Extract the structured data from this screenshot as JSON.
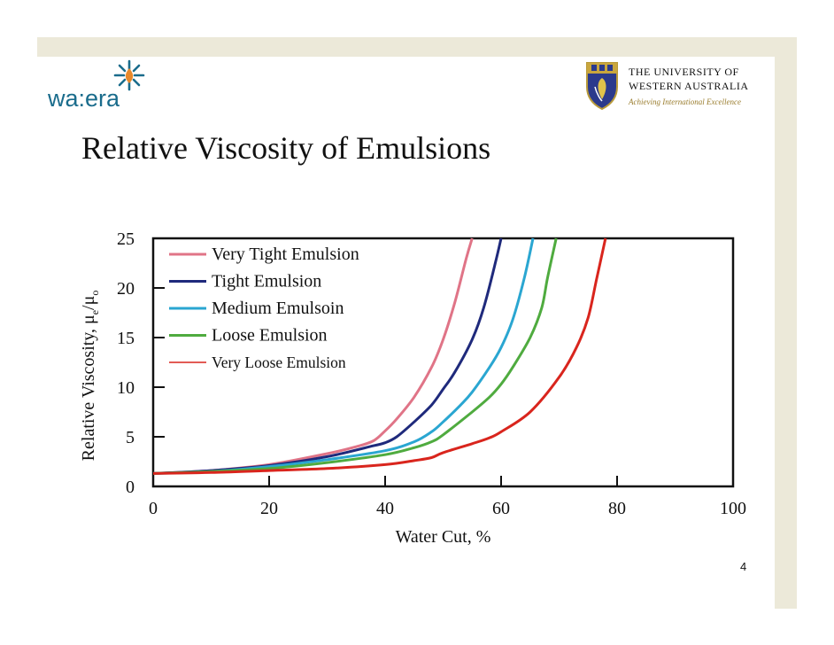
{
  "slide": {
    "title": "Relative Viscosity of Emulsions",
    "page_number": "4"
  },
  "logos": {
    "left_logo_text": "wa:era",
    "university_line1": "THE UNIVERSITY OF",
    "university_line2": "WESTERN AUSTRALIA",
    "university_tagline": "Achieving International Excellence"
  },
  "colors": {
    "band": "#ece9d9",
    "logo_teal": "#1a6c8c",
    "logo_orange": "#e8892b"
  },
  "chart_data": {
    "type": "line",
    "title": "",
    "xlabel": "Water Cut, %",
    "ylabel_main": "Relative Viscosity, μ",
    "ylabel_sub1": "e",
    "ylabel_slash": "/μ",
    "ylabel_sub2": "o",
    "xlim": [
      0,
      100
    ],
    "ylim": [
      0,
      25
    ],
    "x_ticks": [
      0,
      20,
      40,
      60,
      80,
      100
    ],
    "y_ticks": [
      0,
      5,
      10,
      15,
      20,
      25
    ],
    "grid": false,
    "legend_position": "top-left",
    "series": [
      {
        "name": "Very Tight Emulsion",
        "color": "#e07487",
        "x": [
          0,
          10,
          20,
          30,
          35,
          38,
          40,
          42,
          45,
          48,
          50,
          52,
          54,
          55
        ],
        "y": [
          1.3,
          1.6,
          2.2,
          3.3,
          4.0,
          4.6,
          5.6,
          6.8,
          9.0,
          12.0,
          14.8,
          18.5,
          23.0,
          25.0
        ]
      },
      {
        "name": "Tight Emulsion",
        "color": "#1f2a7c",
        "x": [
          0,
          10,
          20,
          30,
          38,
          40,
          42,
          45,
          48,
          50,
          52,
          55,
          57,
          59,
          60
        ],
        "y": [
          1.3,
          1.6,
          2.1,
          3.0,
          4.1,
          4.4,
          5.0,
          6.5,
          8.2,
          9.8,
          11.5,
          14.8,
          18.0,
          22.5,
          25.0
        ]
      },
      {
        "name": "Medium Emulsoin",
        "color": "#2aa6d1",
        "x": [
          0,
          10,
          20,
          30,
          40,
          45,
          48,
          50,
          53,
          55,
          58,
          60,
          62,
          64,
          65.5
        ],
        "y": [
          1.3,
          1.5,
          2.0,
          2.7,
          3.6,
          4.5,
          5.5,
          6.5,
          8.2,
          9.5,
          12.0,
          14.0,
          16.8,
          21.0,
          25.0
        ]
      },
      {
        "name": "Loose Emulsion",
        "color": "#4fab3f",
        "x": [
          0,
          10,
          20,
          30,
          40,
          45,
          48,
          50,
          55,
          58,
          60,
          62,
          65,
          67,
          68,
          69.5
        ],
        "y": [
          1.3,
          1.5,
          1.8,
          2.4,
          3.2,
          3.9,
          4.5,
          5.2,
          7.5,
          9.0,
          10.3,
          12.0,
          15.0,
          18.0,
          21.0,
          25.0
        ]
      },
      {
        "name": "Very Loose Emulsion",
        "color": "#d9251d",
        "x": [
          0,
          10,
          20,
          30,
          40,
          45,
          48,
          50,
          55,
          58,
          60,
          65,
          70,
          73,
          75,
          76.5,
          78
        ],
        "y": [
          1.3,
          1.4,
          1.6,
          1.8,
          2.2,
          2.6,
          2.9,
          3.4,
          4.3,
          4.9,
          5.5,
          7.5,
          11.0,
          14.0,
          17.0,
          21.0,
          25.0
        ]
      }
    ]
  }
}
